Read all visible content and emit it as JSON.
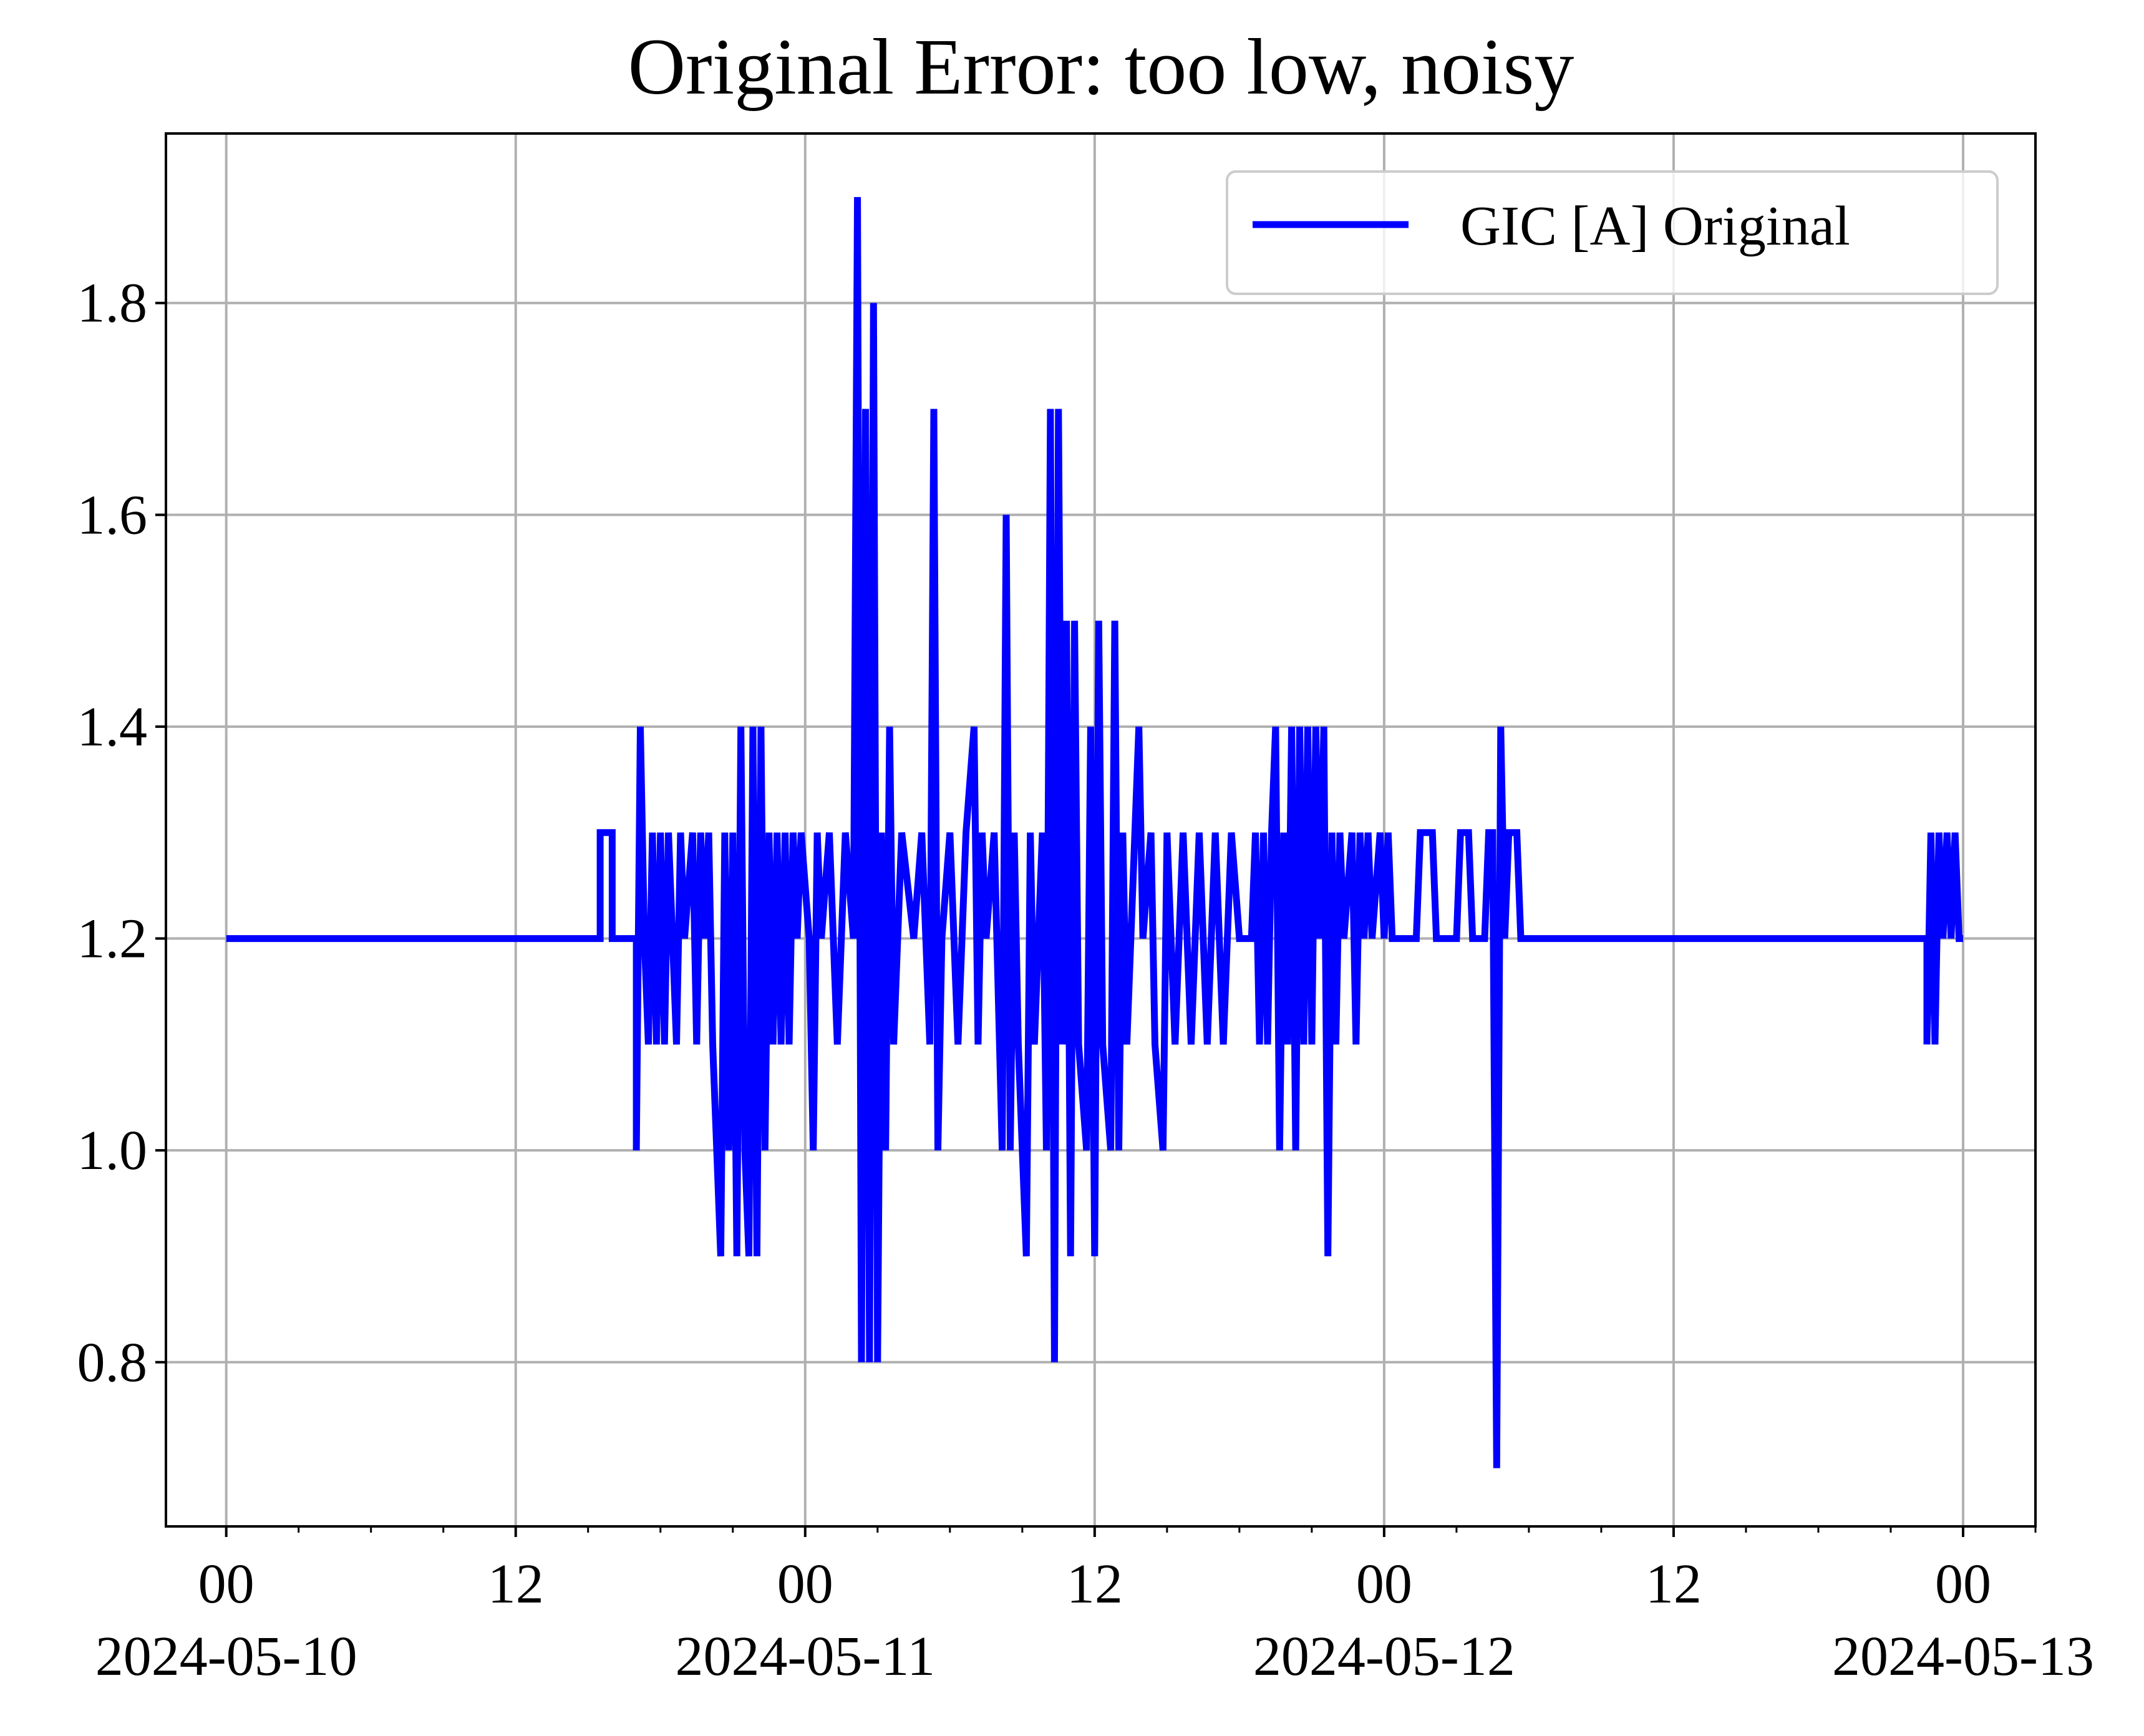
{
  "chart_data": {
    "type": "line",
    "title": "Original Error: too low, noisy",
    "xlabel": "",
    "ylabel": "",
    "xlim": [
      "2024-05-09T21:30",
      "2024-05-13T03:00"
    ],
    "ylim": [
      0.645,
      1.96
    ],
    "grid": true,
    "legend_position": "top-right",
    "x_ticks": [
      {
        "value": "2024-05-10T00:00",
        "hour": "00",
        "date": "2024-05-10"
      },
      {
        "value": "2024-05-10T12:00",
        "hour": "12",
        "date": ""
      },
      {
        "value": "2024-05-11T00:00",
        "hour": "00",
        "date": "2024-05-11"
      },
      {
        "value": "2024-05-11T12:00",
        "hour": "12",
        "date": ""
      },
      {
        "value": "2024-05-12T00:00",
        "hour": "00",
        "date": "2024-05-12"
      },
      {
        "value": "2024-05-12T12:00",
        "hour": "12",
        "date": ""
      },
      {
        "value": "2024-05-13T00:00",
        "hour": "00",
        "date": "2024-05-13"
      }
    ],
    "y_ticks": [
      "0.8",
      "1.0",
      "1.2",
      "1.4",
      "1.6",
      "1.8"
    ],
    "series": [
      {
        "name": "GIC [A] Original",
        "color": "#0000ff",
        "points": [
          [
            "2024-05-10T00:00",
            1.2
          ],
          [
            "2024-05-10T15:30",
            1.2
          ],
          [
            "2024-05-10T15:30",
            1.3
          ],
          [
            "2024-05-10T16:00",
            1.3
          ],
          [
            "2024-05-10T16:00",
            1.2
          ],
          [
            "2024-05-10T17:00",
            1.2
          ],
          [
            "2024-05-10T17:00",
            1.0
          ],
          [
            "2024-05-10T17:10",
            1.4
          ],
          [
            "2024-05-10T17:20",
            1.2
          ],
          [
            "2024-05-10T17:30",
            1.1
          ],
          [
            "2024-05-10T17:40",
            1.3
          ],
          [
            "2024-05-10T17:50",
            1.1
          ],
          [
            "2024-05-10T18:00",
            1.3
          ],
          [
            "2024-05-10T18:10",
            1.1
          ],
          [
            "2024-05-10T18:20",
            1.3
          ],
          [
            "2024-05-10T18:30",
            1.2
          ],
          [
            "2024-05-10T18:40",
            1.1
          ],
          [
            "2024-05-10T18:50",
            1.3
          ],
          [
            "2024-05-10T19:00",
            1.2
          ],
          [
            "2024-05-10T19:20",
            1.3
          ],
          [
            "2024-05-10T19:30",
            1.1
          ],
          [
            "2024-05-10T19:40",
            1.3
          ],
          [
            "2024-05-10T19:50",
            1.2
          ],
          [
            "2024-05-10T20:00",
            1.3
          ],
          [
            "2024-05-10T20:10",
            1.1
          ],
          [
            "2024-05-10T20:20",
            1.0
          ],
          [
            "2024-05-10T20:30",
            0.9
          ],
          [
            "2024-05-10T20:40",
            1.3
          ],
          [
            "2024-05-10T20:50",
            1.0
          ],
          [
            "2024-05-10T21:00",
            1.3
          ],
          [
            "2024-05-10T21:10",
            0.9
          ],
          [
            "2024-05-10T21:20",
            1.4
          ],
          [
            "2024-05-10T21:30",
            1.0
          ],
          [
            "2024-05-10T21:40",
            0.9
          ],
          [
            "2024-05-10T21:50",
            1.4
          ],
          [
            "2024-05-10T22:00",
            0.9
          ],
          [
            "2024-05-10T22:10",
            1.4
          ],
          [
            "2024-05-10T22:20",
            1.0
          ],
          [
            "2024-05-10T22:30",
            1.3
          ],
          [
            "2024-05-10T22:40",
            1.1
          ],
          [
            "2024-05-10T22:50",
            1.3
          ],
          [
            "2024-05-10T23:00",
            1.1
          ],
          [
            "2024-05-10T23:10",
            1.3
          ],
          [
            "2024-05-10T23:20",
            1.1
          ],
          [
            "2024-05-10T23:30",
            1.3
          ],
          [
            "2024-05-10T23:40",
            1.2
          ],
          [
            "2024-05-10T23:50",
            1.3
          ],
          [
            "2024-05-11T00:10",
            1.2
          ],
          [
            "2024-05-11T00:20",
            1.0
          ],
          [
            "2024-05-11T00:30",
            1.3
          ],
          [
            "2024-05-11T00:40",
            1.2
          ],
          [
            "2024-05-11T01:00",
            1.3
          ],
          [
            "2024-05-11T01:20",
            1.1
          ],
          [
            "2024-05-11T01:40",
            1.3
          ],
          [
            "2024-05-11T02:00",
            1.2
          ],
          [
            "2024-05-11T02:10",
            1.9
          ],
          [
            "2024-05-11T02:20",
            0.8
          ],
          [
            "2024-05-11T02:30",
            1.7
          ],
          [
            "2024-05-11T02:40",
            0.8
          ],
          [
            "2024-05-11T02:50",
            1.8
          ],
          [
            "2024-05-11T03:00",
            0.8
          ],
          [
            "2024-05-11T03:10",
            1.3
          ],
          [
            "2024-05-11T03:20",
            1.0
          ],
          [
            "2024-05-11T03:30",
            1.4
          ],
          [
            "2024-05-11T03:40",
            1.1
          ],
          [
            "2024-05-11T04:00",
            1.3
          ],
          [
            "2024-05-11T04:30",
            1.2
          ],
          [
            "2024-05-11T04:50",
            1.3
          ],
          [
            "2024-05-11T05:10",
            1.1
          ],
          [
            "2024-05-11T05:20",
            1.7
          ],
          [
            "2024-05-11T05:30",
            1.0
          ],
          [
            "2024-05-11T05:40",
            1.2
          ],
          [
            "2024-05-11T06:00",
            1.3
          ],
          [
            "2024-05-11T06:20",
            1.1
          ],
          [
            "2024-05-11T06:40",
            1.3
          ],
          [
            "2024-05-11T07:00",
            1.4
          ],
          [
            "2024-05-11T07:10",
            1.1
          ],
          [
            "2024-05-11T07:20",
            1.3
          ],
          [
            "2024-05-11T07:30",
            1.2
          ],
          [
            "2024-05-11T07:50",
            1.3
          ],
          [
            "2024-05-11T08:10",
            1.0
          ],
          [
            "2024-05-11T08:20",
            1.6
          ],
          [
            "2024-05-11T08:30",
            1.0
          ],
          [
            "2024-05-11T08:40",
            1.3
          ],
          [
            "2024-05-11T08:50",
            1.1
          ],
          [
            "2024-05-11T09:10",
            0.9
          ],
          [
            "2024-05-11T09:20",
            1.3
          ],
          [
            "2024-05-11T09:30",
            1.1
          ],
          [
            "2024-05-11T09:50",
            1.3
          ],
          [
            "2024-05-11T10:00",
            1.0
          ],
          [
            "2024-05-11T10:10",
            1.7
          ],
          [
            "2024-05-11T10:20",
            0.8
          ],
          [
            "2024-05-11T10:30",
            1.7
          ],
          [
            "2024-05-11T10:40",
            1.1
          ],
          [
            "2024-05-11T10:50",
            1.5
          ],
          [
            "2024-05-11T11:00",
            0.9
          ],
          [
            "2024-05-11T11:10",
            1.5
          ],
          [
            "2024-05-11T11:20",
            1.1
          ],
          [
            "2024-05-11T11:40",
            1.0
          ],
          [
            "2024-05-11T11:50",
            1.4
          ],
          [
            "2024-05-11T12:00",
            0.9
          ],
          [
            "2024-05-11T12:10",
            1.5
          ],
          [
            "2024-05-11T12:20",
            1.1
          ],
          [
            "2024-05-11T12:40",
            1.0
          ],
          [
            "2024-05-11T12:50",
            1.5
          ],
          [
            "2024-05-11T13:00",
            1.0
          ],
          [
            "2024-05-11T13:10",
            1.3
          ],
          [
            "2024-05-11T13:20",
            1.1
          ],
          [
            "2024-05-11T13:40",
            1.3
          ],
          [
            "2024-05-11T13:50",
            1.4
          ],
          [
            "2024-05-11T14:00",
            1.2
          ],
          [
            "2024-05-11T14:20",
            1.3
          ],
          [
            "2024-05-11T14:30",
            1.1
          ],
          [
            "2024-05-11T14:50",
            1.0
          ],
          [
            "2024-05-11T15:00",
            1.3
          ],
          [
            "2024-05-11T15:20",
            1.1
          ],
          [
            "2024-05-11T15:40",
            1.3
          ],
          [
            "2024-05-11T16:00",
            1.1
          ],
          [
            "2024-05-11T16:20",
            1.3
          ],
          [
            "2024-05-11T16:40",
            1.1
          ],
          [
            "2024-05-11T17:00",
            1.3
          ],
          [
            "2024-05-11T17:20",
            1.1
          ],
          [
            "2024-05-11T17:40",
            1.3
          ],
          [
            "2024-05-11T18:00",
            1.2
          ],
          [
            "2024-05-11T18:30",
            1.2
          ],
          [
            "2024-05-11T18:40",
            1.3
          ],
          [
            "2024-05-11T18:50",
            1.1
          ],
          [
            "2024-05-11T19:00",
            1.3
          ],
          [
            "2024-05-11T19:10",
            1.1
          ],
          [
            "2024-05-11T19:20",
            1.3
          ],
          [
            "2024-05-11T19:30",
            1.4
          ],
          [
            "2024-05-11T19:40",
            1.0
          ],
          [
            "2024-05-11T19:50",
            1.3
          ],
          [
            "2024-05-11T20:00",
            1.1
          ],
          [
            "2024-05-11T20:10",
            1.4
          ],
          [
            "2024-05-11T20:20",
            1.0
          ],
          [
            "2024-05-11T20:30",
            1.4
          ],
          [
            "2024-05-11T20:40",
            1.1
          ],
          [
            "2024-05-11T20:50",
            1.4
          ],
          [
            "2024-05-11T21:00",
            1.1
          ],
          [
            "2024-05-11T21:10",
            1.4
          ],
          [
            "2024-05-11T21:20",
            1.2
          ],
          [
            "2024-05-11T21:30",
            1.4
          ],
          [
            "2024-05-11T21:40",
            0.9
          ],
          [
            "2024-05-11T21:50",
            1.3
          ],
          [
            "2024-05-11T22:00",
            1.1
          ],
          [
            "2024-05-11T22:10",
            1.3
          ],
          [
            "2024-05-11T22:20",
            1.2
          ],
          [
            "2024-05-11T22:40",
            1.3
          ],
          [
            "2024-05-11T22:50",
            1.1
          ],
          [
            "2024-05-11T23:00",
            1.3
          ],
          [
            "2024-05-11T23:10",
            1.2
          ],
          [
            "2024-05-11T23:20",
            1.3
          ],
          [
            "2024-05-11T23:30",
            1.2
          ],
          [
            "2024-05-11T23:50",
            1.3
          ],
          [
            "2024-05-12T00:00",
            1.2
          ],
          [
            "2024-05-12T00:10",
            1.3
          ],
          [
            "2024-05-12T00:20",
            1.2
          ],
          [
            "2024-05-12T00:40",
            1.2
          ],
          [
            "2024-05-12T01:20",
            1.2
          ],
          [
            "2024-05-12T01:30",
            1.3
          ],
          [
            "2024-05-12T02:00",
            1.3
          ],
          [
            "2024-05-12T02:10",
            1.2
          ],
          [
            "2024-05-12T03:00",
            1.2
          ],
          [
            "2024-05-12T03:10",
            1.3
          ],
          [
            "2024-05-12T03:30",
            1.3
          ],
          [
            "2024-05-12T03:40",
            1.2
          ],
          [
            "2024-05-12T04:10",
            1.2
          ],
          [
            "2024-05-12T04:20",
            1.3
          ],
          [
            "2024-05-12T04:30",
            1.3
          ],
          [
            "2024-05-12T04:40",
            0.7
          ],
          [
            "2024-05-12T04:50",
            1.4
          ],
          [
            "2024-05-12T05:00",
            1.2
          ],
          [
            "2024-05-12T05:10",
            1.3
          ],
          [
            "2024-05-12T05:30",
            1.3
          ],
          [
            "2024-05-12T05:40",
            1.2
          ],
          [
            "2024-05-12T22:30",
            1.2
          ],
          [
            "2024-05-12T22:30",
            1.1
          ],
          [
            "2024-05-12T22:40",
            1.3
          ],
          [
            "2024-05-12T22:50",
            1.1
          ],
          [
            "2024-05-12T23:00",
            1.3
          ],
          [
            "2024-05-12T23:10",
            1.2
          ],
          [
            "2024-05-12T23:20",
            1.3
          ],
          [
            "2024-05-12T23:30",
            1.2
          ],
          [
            "2024-05-12T23:40",
            1.3
          ],
          [
            "2024-05-12T23:50",
            1.2
          ],
          [
            "2024-05-13T00:00",
            1.2
          ]
        ]
      }
    ]
  }
}
